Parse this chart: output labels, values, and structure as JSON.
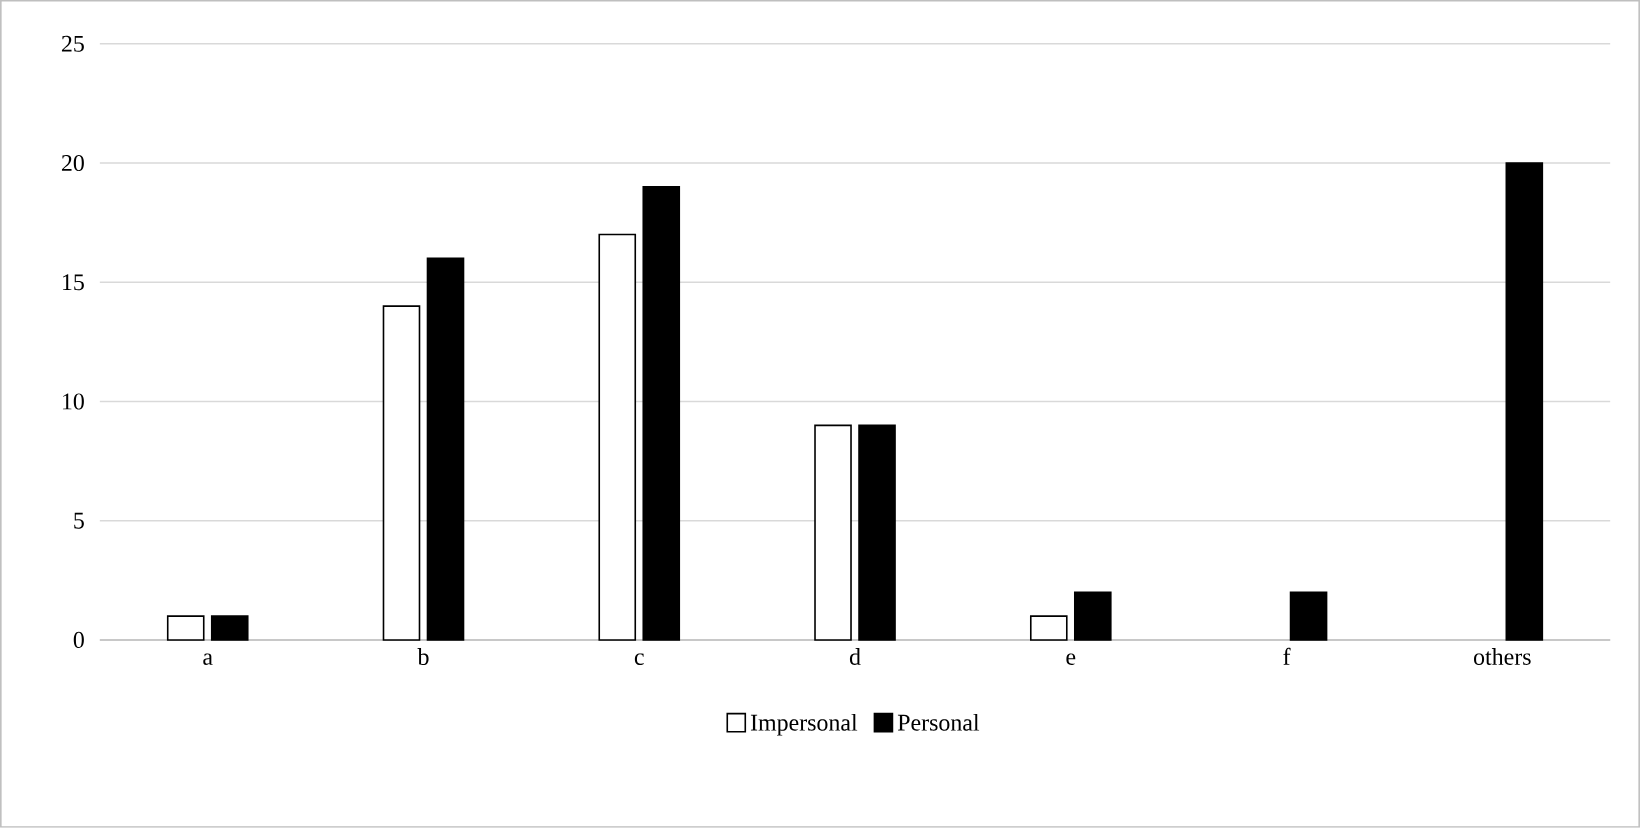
{
  "chart_data": {
    "type": "bar",
    "categories": [
      "a",
      "b",
      "c",
      "d",
      "e",
      "f",
      "others"
    ],
    "series": [
      {
        "name": "Impersonal",
        "color": "#ffffff",
        "values": [
          1,
          14,
          17,
          9,
          1,
          null,
          null
        ]
      },
      {
        "name": "Personal",
        "color": "#000000",
        "values": [
          1,
          16,
          19,
          9,
          2,
          2,
          20
        ]
      }
    ],
    "ylim": [
      0,
      25
    ],
    "yticks": [
      0,
      5,
      10,
      15,
      20,
      25
    ],
    "grid": "y",
    "legend": "bottom"
  }
}
